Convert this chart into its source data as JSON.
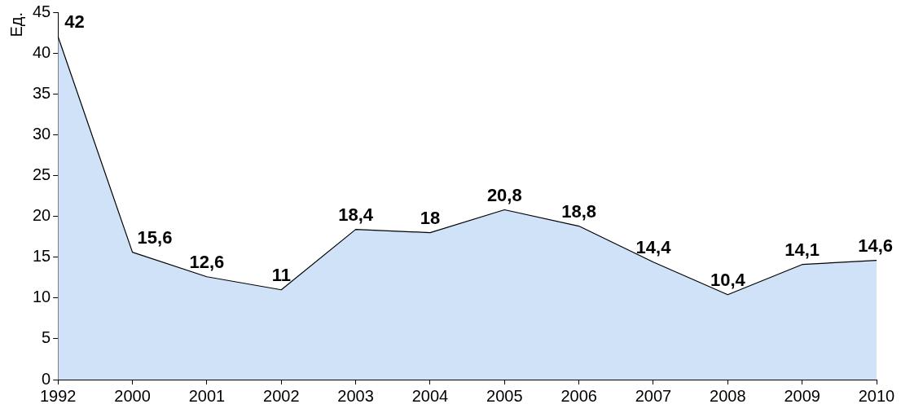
{
  "chart_data": {
    "type": "area",
    "ylabel": "Ед.",
    "categories": [
      "1992",
      "2000",
      "2001",
      "2002",
      "2003",
      "2004",
      "2005",
      "2006",
      "2007",
      "2008",
      "2009",
      "2010"
    ],
    "series": [
      {
        "color": "#cfe2f7",
        "values": [
          42,
          15.6,
          12.6,
          11,
          18.4,
          18,
          20.8,
          18.8,
          14.4,
          10.4,
          14.1,
          14.6
        ],
        "value_labels": [
          "42",
          "15,6",
          "12,6",
          "11",
          "18,4",
          "18",
          "20,8",
          "18,8",
          "14,4",
          "10,4",
          "14,1",
          "14,6"
        ]
      }
    ],
    "ylim": [
      0,
      45
    ],
    "yticks": [
      0,
      5,
      10,
      15,
      20,
      25,
      30,
      35,
      40,
      45
    ],
    "grid": false,
    "legend": false
  }
}
